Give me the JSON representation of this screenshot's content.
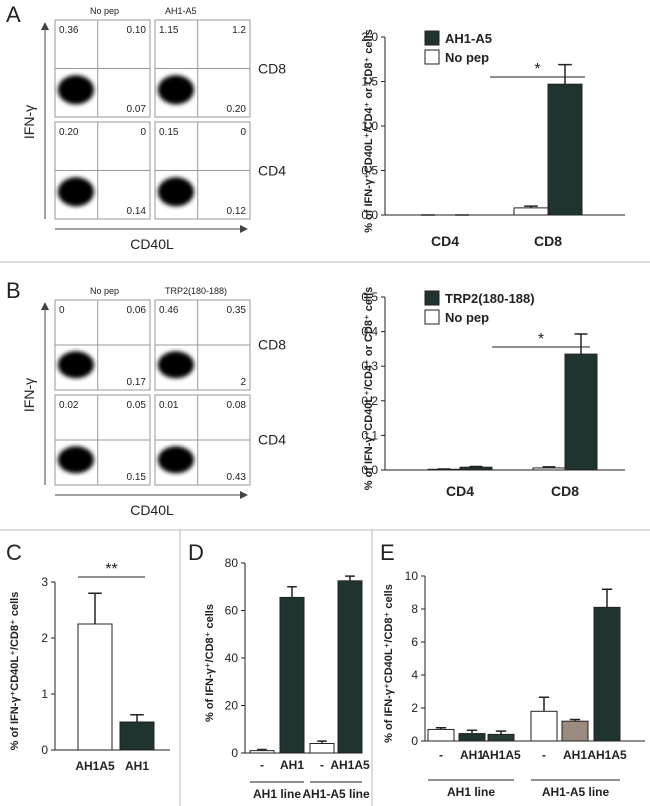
{
  "panel_labels": [
    "A",
    "B",
    "C",
    "D",
    "E"
  ],
  "flow_panels": [
    {
      "columns": [
        "No pep",
        "AH1-A5"
      ],
      "rows": [
        "CD8",
        "CD4"
      ],
      "quadrants": [
        [
          [
            "0.36",
            "0.10",
            "0.07"
          ],
          [
            "1.15",
            "1.2",
            "0.20"
          ]
        ],
        [
          [
            "0.20",
            "0",
            "0.14"
          ],
          [
            "0.15",
            "0",
            "0.12"
          ]
        ]
      ],
      "y_label": "IFN-γ",
      "x_label": "CD40L"
    },
    {
      "columns": [
        "No pep",
        "TRP2(180-188)"
      ],
      "rows": [
        "CD8",
        "CD4"
      ],
      "quadrants": [
        [
          [
            "0",
            "0.06",
            "0.17"
          ],
          [
            "0.46",
            "0.35",
            "2"
          ]
        ],
        [
          [
            "0.02",
            "0.05",
            "0.15"
          ],
          [
            "0.01",
            "0.08",
            "0.43"
          ]
        ]
      ],
      "y_label": "IFN-γ",
      "x_label": "CD40L"
    }
  ],
  "chart_data": [
    {
      "type": "bar",
      "y_label": "% of IFN-γ⁺CD40L⁺/CD4⁺ or CD8⁺ cells",
      "categories": [
        "CD4",
        "CD8"
      ],
      "series": [
        {
          "name": "No pep",
          "color": "#ffffff",
          "values": [
            0,
            0.08
          ],
          "errors": [
            0,
            0.02
          ]
        },
        {
          "name": "AH1-A5",
          "color": "#1f3430",
          "values": [
            0,
            1.47
          ],
          "errors": [
            0,
            0.22
          ]
        }
      ],
      "ylim": [
        0,
        2.0
      ],
      "yticks": [
        {
          "value": 0,
          "label": "0.0"
        },
        {
          "value": 0.5,
          "label": "0.5"
        },
        {
          "value": 1,
          "label": "1.0"
        },
        {
          "value": 1.5,
          "label": "1.5"
        },
        {
          "value": 2,
          "label": "2.0"
        }
      ],
      "annotation": "*"
    },
    {
      "type": "bar",
      "y_label": "% of IFN-γ⁺CD40L⁺/CD4⁺ or CD8⁺ cells",
      "categories": [
        "CD4",
        "CD8"
      ],
      "series": [
        {
          "name": "No pep",
          "color": "#ffffff",
          "values": [
            0.002,
            0.006
          ],
          "errors": [
            0.001,
            0.003
          ]
        },
        {
          "name": "TRP2(180-188)",
          "color": "#1f3430",
          "values": [
            0.008,
            0.335
          ],
          "errors": [
            0.002,
            0.058
          ]
        }
      ],
      "ylim": [
        0,
        0.5
      ],
      "yticks": [
        {
          "value": 0,
          "label": "0.0"
        },
        0.1,
        0.2,
        0.3,
        0.4,
        0.5
      ],
      "annotation": "*"
    },
    {
      "type": "bar",
      "y_label": "% of IFN-γ⁺CD40L⁺/CD8⁺ cells",
      "categories": [
        "AH1A5",
        "AH1"
      ],
      "values": [
        2.25,
        0.5
      ],
      "errors": [
        0.55,
        0.13
      ],
      "colors": [
        "#ffffff",
        "#1f3430"
      ],
      "ylim": [
        0,
        3
      ],
      "yticks": [
        0,
        1,
        2,
        3
      ],
      "annotation": "**"
    },
    {
      "type": "bar",
      "y_label": "% of IFN-γ⁺/CD8⁺ cells",
      "categories": [
        "-",
        "AH1",
        "-",
        "AH1A5"
      ],
      "values": [
        1,
        65.5,
        4,
        72.5
      ],
      "errors": [
        0.5,
        4.5,
        1,
        2
      ],
      "colors": [
        "#ffffff",
        "#1f3430",
        "#ffffff",
        "#1f3430"
      ],
      "groups": [
        "AH1 line",
        "AH1-A5 line"
      ],
      "ylim": [
        0,
        80
      ],
      "yticks": [
        0,
        20,
        40,
        60,
        80
      ]
    },
    {
      "type": "bar",
      "y_label": "% of IFN-γ⁺CD40L⁺/CD8⁺ cells",
      "categories": [
        "-",
        "AH1",
        "AH1A5",
        "-",
        "AH1",
        "AH1A5"
      ],
      "values": [
        0.7,
        0.45,
        0.4,
        1.8,
        1.2,
        8.1
      ],
      "errors": [
        0.1,
        0.2,
        0.2,
        0.85,
        0.1,
        1.1
      ],
      "colors": [
        "#ffffff",
        "#1f3430",
        "#2a3a36",
        "#ffffff",
        "#9a8a80",
        "#1f3430"
      ],
      "groups": [
        "AH1 line",
        "AH1-A5 line"
      ],
      "ylim": [
        0,
        10
      ],
      "yticks": [
        0,
        2,
        4,
        6,
        8,
        10
      ]
    }
  ]
}
